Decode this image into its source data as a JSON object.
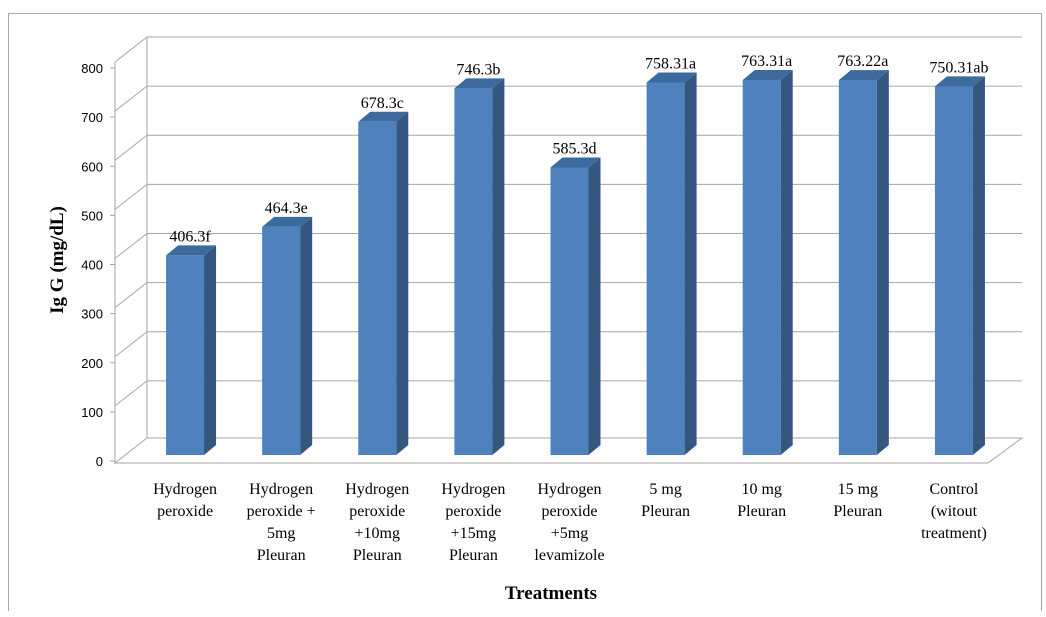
{
  "chart_data": {
    "type": "bar",
    "categories": [
      [
        "Hydrogen",
        "peroxide"
      ],
      [
        "Hydrogen",
        "peroxide +",
        "5mg",
        "Pleuran"
      ],
      [
        "Hydrogen",
        "peroxide",
        "+10mg",
        "Pleuran"
      ],
      [
        "Hydrogen",
        "peroxide",
        "+15mg",
        "Pleuran"
      ],
      [
        "Hydrogen",
        "peroxide",
        "+5mg",
        "levamizole"
      ],
      [
        "5 mg",
        "Pleuran"
      ],
      [
        "10 mg",
        "Pleuran"
      ],
      [
        "15 mg",
        "Pleuran"
      ],
      [
        "Control",
        "(witout",
        "treatment)"
      ]
    ],
    "values": [
      406.3,
      464.3,
      678.3,
      746.3,
      585.3,
      758.31,
      763.31,
      763.22,
      750.31
    ],
    "data_labels": [
      "406.3f",
      "464.3e",
      "678.3c",
      "746.3b",
      "585.3d",
      "758.31a",
      "763.31a",
      "763.22a",
      "750.31ab"
    ],
    "xlabel": "Treatments",
    "ylabel": "Ig G (mg/dL)",
    "ylim": [
      0,
      800
    ],
    "yticks": [
      0,
      100,
      200,
      300,
      400,
      500,
      600,
      700,
      800
    ],
    "grid": true,
    "style": "3d-column",
    "colors": {
      "bar_front": "#4f81bd",
      "bar_side": "#35577f",
      "bar_top": "#3c6a9c",
      "grid": "#a6a6a6"
    }
  }
}
